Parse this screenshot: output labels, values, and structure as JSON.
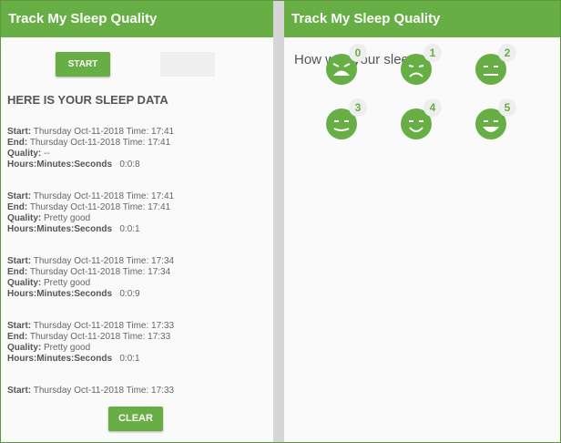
{
  "left": {
    "title": "Track My Sleep Quality",
    "start_label": "START",
    "heading": "HERE IS YOUR SLEEP DATA",
    "labels": {
      "start": "Start:",
      "end": "End:",
      "quality": "Quality:",
      "duration": "Hours:Minutes:Seconds"
    },
    "entries": [
      {
        "start": "Thursday Oct-11-2018 Time: 17:41",
        "end": "Thursday Oct-11-2018 Time: 17:41",
        "quality": "--",
        "duration": "0:0:8"
      },
      {
        "start": "Thursday Oct-11-2018 Time: 17:41",
        "end": "Thursday Oct-11-2018 Time: 17:41",
        "quality": "Pretty good",
        "duration": "0:0:1"
      },
      {
        "start": "Thursday Oct-11-2018 Time: 17:34",
        "end": "Thursday Oct-11-2018 Time: 17:34",
        "quality": "Pretty good",
        "duration": "0:0:9"
      },
      {
        "start": "Thursday Oct-11-2018 Time: 17:33",
        "end": "Thursday Oct-11-2018 Time: 17:33",
        "quality": "Pretty good",
        "duration": "0:0:1"
      },
      {
        "start": "Thursday Oct-11-2018 Time: 17:33",
        "end": "",
        "quality": "",
        "duration": ""
      }
    ],
    "clear_label": "CLEAR"
  },
  "right": {
    "title": "Track My Sleep Quality",
    "question": "How was your sleep?",
    "faces": [
      {
        "value": "0",
        "icon": "face-crying-icon"
      },
      {
        "value": "1",
        "icon": "face-sad-icon"
      },
      {
        "value": "2",
        "icon": "face-neutral-icon"
      },
      {
        "value": "3",
        "icon": "face-slight-smile-icon"
      },
      {
        "value": "4",
        "icon": "face-smile-icon"
      },
      {
        "value": "5",
        "icon": "face-laughing-icon"
      }
    ]
  },
  "colors": {
    "accent": "#67ae44"
  }
}
